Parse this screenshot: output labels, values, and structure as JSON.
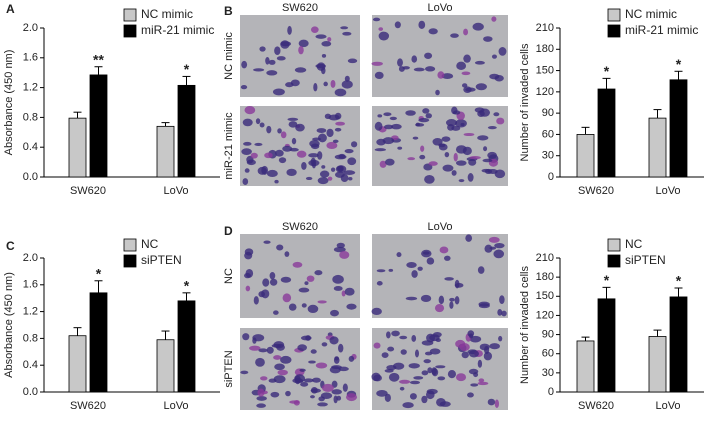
{
  "chart_data": [
    {
      "type": "bar",
      "panel": "A",
      "ylabel": "Absorbance (450 nm)",
      "categories": [
        "SW620",
        "LoVo"
      ],
      "series": [
        {
          "name": "NC mimic",
          "color": "#c8c8c8",
          "values": [
            0.79,
            0.68
          ],
          "errors": [
            0.08,
            0.05
          ],
          "annotations": [
            null,
            null
          ]
        },
        {
          "name": "miR-21 mimic",
          "color": "#000000",
          "values": [
            1.37,
            1.23
          ],
          "errors": [
            0.11,
            0.12
          ],
          "annotations": [
            "**",
            "*"
          ]
        }
      ],
      "ylim": [
        0,
        2
      ],
      "yticks": [
        {
          "value": 0,
          "label": "0.0"
        },
        0.4,
        0.8,
        1.2,
        1.6,
        {
          "value": 2,
          "label": "2.0"
        }
      ],
      "legend": "top-right"
    },
    {
      "type": "bar",
      "panel": null,
      "ylabel": "Number of invaded cells",
      "categories": [
        "SW620",
        "LoVo"
      ],
      "series": [
        {
          "name": "NC mimic",
          "color": "#c8c8c8",
          "values": [
            60,
            83
          ],
          "errors": [
            10,
            12
          ],
          "annotations": [
            null,
            null
          ]
        },
        {
          "name": "miR-21 mimic",
          "color": "#000000",
          "values": [
            124,
            137
          ],
          "errors": [
            15,
            12
          ],
          "annotations": [
            "*",
            "*"
          ]
        }
      ],
      "ylim": [
        0,
        210
      ],
      "yticks": [
        0,
        30,
        60,
        90,
        120,
        150,
        180,
        210
      ],
      "legend": "top-right"
    },
    {
      "type": "bar",
      "panel": "C",
      "ylabel": "Absorbance (450 nm)",
      "categories": [
        "SW620",
        "LoVo"
      ],
      "series": [
        {
          "name": "NC",
          "color": "#c8c8c8",
          "values": [
            0.84,
            0.78
          ],
          "errors": [
            0.12,
            0.13
          ],
          "annotations": [
            null,
            null
          ]
        },
        {
          "name": "siPTEN",
          "color": "#000000",
          "values": [
            1.48,
            1.36
          ],
          "errors": [
            0.18,
            0.12
          ],
          "annotations": [
            "*",
            "*"
          ]
        }
      ],
      "ylim": [
        0,
        2
      ],
      "yticks": [
        {
          "value": 0,
          "label": "0.0"
        },
        0.4,
        0.8,
        1.2,
        1.6,
        {
          "value": 2,
          "label": "2.0"
        }
      ],
      "legend": "top-right"
    },
    {
      "type": "bar",
      "panel": null,
      "ylabel": "Number of invaded cells",
      "categories": [
        "SW620",
        "LoVo"
      ],
      "series": [
        {
          "name": "NC",
          "color": "#c8c8c8",
          "values": [
            80,
            87
          ],
          "errors": [
            6,
            10
          ],
          "annotations": [
            null,
            null
          ]
        },
        {
          "name": "siPTEN",
          "color": "#000000",
          "values": [
            146,
            149
          ],
          "errors": [
            18,
            14
          ],
          "annotations": [
            "*",
            "*"
          ]
        }
      ],
      "ylim": [
        0,
        210
      ],
      "yticks": [
        0,
        30,
        60,
        90,
        120,
        150,
        180,
        210
      ],
      "legend": "top-right"
    }
  ],
  "images": [
    {
      "panel": "B",
      "columns": [
        "SW620",
        "LoVo"
      ],
      "rows": [
        "NC mimic",
        "miR-21 mimic"
      ]
    },
    {
      "panel": "D",
      "columns": [
        "SW620",
        "LoVo"
      ],
      "rows": [
        "NC",
        "siPTEN"
      ]
    }
  ]
}
